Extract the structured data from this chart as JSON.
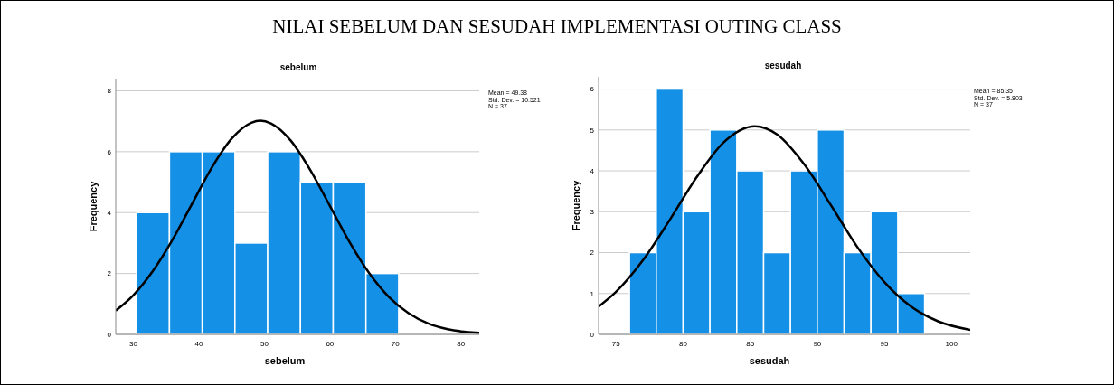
{
  "chart_data": [
    {
      "type": "histogram",
      "title": "sebelum",
      "xlabel": "sebelum",
      "ylabel": "Frequency",
      "annotations": [
        "NILAI SEBELUM DAN SESUDAH IMPLEMENTASI OUTING CLASS",
        "Mean = 49.38",
        "Std. Dev. = 10.521",
        "N = 37"
      ],
      "bins": [
        30.5,
        35.5,
        40.5,
        45.5,
        50.5,
        55.5,
        60.5,
        65.5,
        70.5
      ],
      "xlim": [
        27.3,
        82.8
      ],
      "xticks": [
        30,
        40,
        50,
        60,
        70,
        80
      ],
      "ylim": [
        0,
        8.4
      ],
      "yticks": [
        0,
        2,
        4,
        6,
        8
      ],
      "grid": "y",
      "series": [
        {
          "color": "#1490e6",
          "values": [
            4,
            6,
            6,
            3,
            6,
            5,
            5,
            2
          ]
        },
        {
          "type": "line",
          "color": "#000000",
          "x": [
            27.3,
            30,
            33,
            36,
            39,
            42,
            45,
            48,
            49.38,
            51,
            54,
            57,
            60,
            63,
            66,
            69,
            72,
            75,
            78,
            82.8
          ],
          "values": [
            0.78,
            1.29,
            2.09,
            3.12,
            4.31,
            5.49,
            6.43,
            6.95,
            7.02,
            6.93,
            6.37,
            5.4,
            4.22,
            3.03,
            2.01,
            1.23,
            0.7,
            0.36,
            0.17,
            0.05
          ]
        }
      ]
    },
    {
      "type": "histogram",
      "title": "sesudah",
      "xlabel": "sesudah",
      "ylabel": "Frequency",
      "annotations": [
        "Mean = 85.35",
        "Std. Dev. = 5.803",
        "N = 37"
      ],
      "bins": [
        76,
        78,
        80,
        82,
        84,
        86,
        88,
        90,
        92,
        94,
        96,
        98
      ],
      "xlim": [
        73.7,
        101.4
      ],
      "xticks": [
        75,
        80,
        85,
        90,
        95,
        100
      ],
      "ylim": [
        0,
        6.3
      ],
      "yticks": [
        0,
        1,
        2,
        3,
        4,
        5,
        6
      ],
      "grid": "y",
      "series": [
        {
          "color": "#1490e6",
          "values": [
            2,
            6,
            3,
            5,
            4,
            2,
            4,
            5,
            2,
            3,
            1
          ]
        },
        {
          "type": "line",
          "color": "#000000",
          "x": [
            73.7,
            75,
            77,
            79,
            81,
            83,
            85.35,
            87,
            89,
            91,
            93,
            95,
            97,
            99,
            101.4
          ],
          "values": [
            0.68,
            1.04,
            1.81,
            2.8,
            3.84,
            4.69,
            5.09,
            4.89,
            4.17,
            3.17,
            2.13,
            1.28,
            0.68,
            0.32,
            0.11
          ]
        }
      ]
    }
  ]
}
